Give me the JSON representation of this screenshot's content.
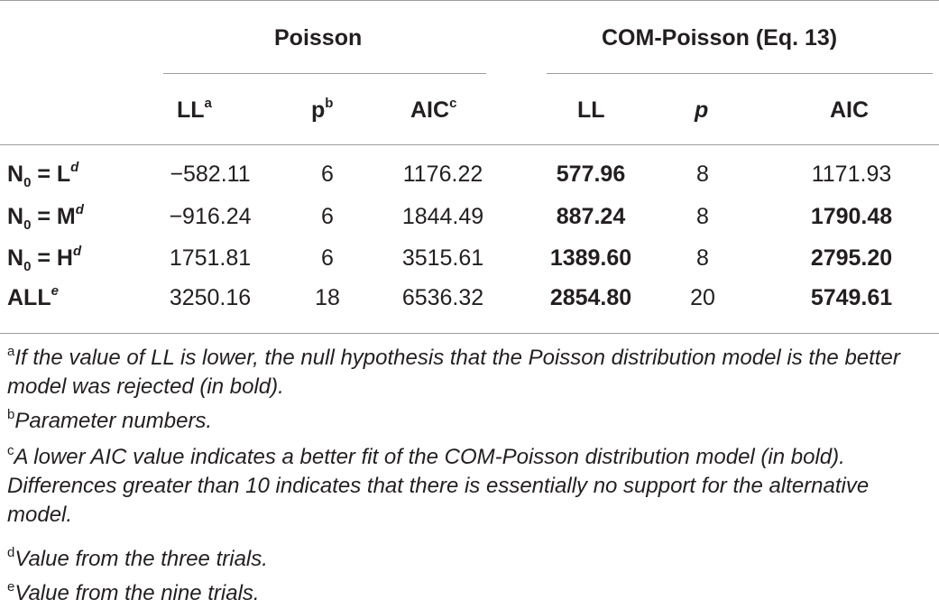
{
  "column_groups": {
    "poisson": "Poisson",
    "com_poisson": "COM-Poisson (Eq. 13)"
  },
  "columns": [
    {
      "label": "LL",
      "sup": "a"
    },
    {
      "label": "p",
      "sup": "b"
    },
    {
      "label": "AIC",
      "sup": "c"
    },
    {
      "label": "LL",
      "sup": ""
    },
    {
      "label": "p",
      "sup": ""
    },
    {
      "label": "AIC",
      "sup": ""
    }
  ],
  "rows": [
    {
      "label_pre": "N",
      "label_sub": "0",
      "label_post": " = L",
      "label_sup": "d",
      "values": [
        "−582.11",
        "6",
        "1176.22",
        "577.96",
        "8",
        "1171.93"
      ]
    },
    {
      "label_pre": "N",
      "label_sub": "0",
      "label_post": " = M",
      "label_sup": "d",
      "values": [
        "−916.24",
        "6",
        "1844.49",
        "887.24",
        "8",
        "1790.48"
      ]
    },
    {
      "label_pre": "N",
      "label_sub": "0",
      "label_post": " = H",
      "label_sup": "d",
      "values": [
        "1751.81",
        "6",
        "3515.61",
        "1389.60",
        "8",
        "2795.20"
      ]
    },
    {
      "label_pre": "ALL",
      "label_sub": "",
      "label_post": "",
      "label_sup": "e",
      "values": [
        "3250.16",
        "18",
        "6536.32",
        "2854.80",
        "20",
        "5749.61"
      ]
    }
  ],
  "footnotes": [
    {
      "mark": "a",
      "text": "If the value of LL is lower, the null hypothesis that the Poisson distribution model is the better model was rejected (in bold)."
    },
    {
      "mark": "b",
      "text": "Parameter numbers."
    },
    {
      "mark": "c",
      "text": "A lower AIC value indicates a better fit of the COM-Poisson distribution model (in bold). Differences greater than 10 indicates that there is essentially no support for the alternative model."
    },
    {
      "mark": "d",
      "text": "Value from the three trials."
    },
    {
      "mark": "e",
      "text": "Value from the nine trials."
    }
  ]
}
